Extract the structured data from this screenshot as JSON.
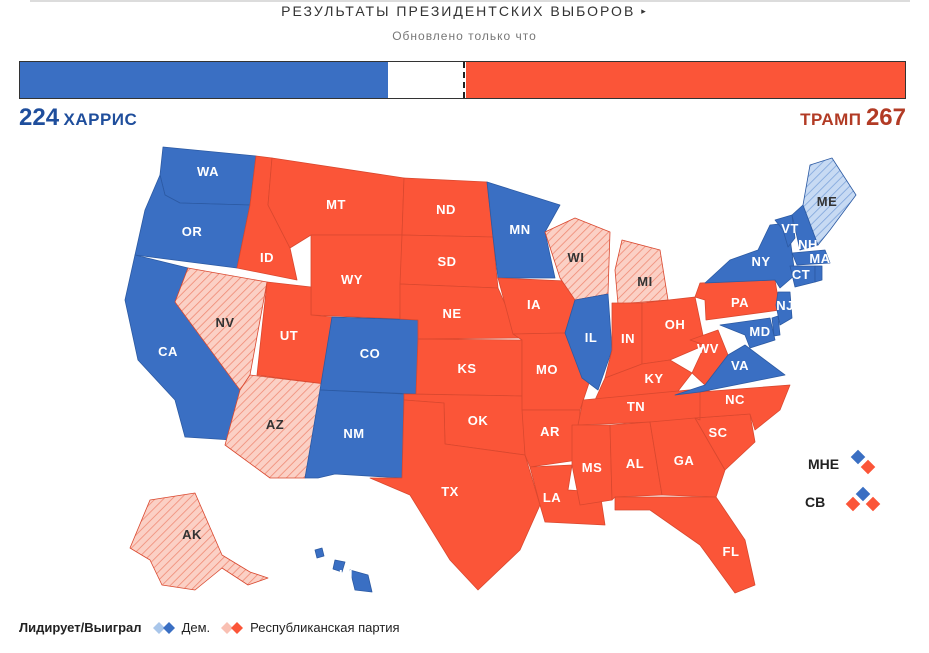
{
  "header": {
    "title": "РЕЗУЛЬТАТЫ ПРЕЗИДЕНТСКИХ ВЫБОРОВ",
    "arrow": "▸",
    "updated": "Обновлено только что"
  },
  "tally": {
    "dem_votes": "224",
    "dem_name": "ХАРРИС",
    "rep_name": "ТРАМП",
    "rep_votes": "267",
    "total": 538,
    "to_win": 270
  },
  "colors": {
    "dem_won": "#3a6fc3",
    "dem_lead": "#a9c6ea",
    "rep_won": "#fb5538",
    "rep_lead": "#f9c0b3"
  },
  "states": {
    "WA": "dem_won",
    "OR": "dem_won",
    "CA": "dem_won",
    "NV": "rep_lead",
    "ID": "rep_won",
    "MT": "rep_won",
    "WY": "rep_won",
    "UT": "rep_won",
    "AZ": "rep_lead",
    "CO": "dem_won",
    "NM": "dem_won",
    "ND": "rep_won",
    "SD": "rep_won",
    "NE": "rep_won",
    "KS": "rep_won",
    "OK": "rep_won",
    "TX": "rep_won",
    "MN": "dem_won",
    "IA": "rep_won",
    "MO": "rep_won",
    "AR": "rep_won",
    "LA": "rep_won",
    "WI": "rep_lead",
    "IL": "dem_won",
    "MI": "rep_lead",
    "IN": "rep_won",
    "OH": "rep_won",
    "KY": "rep_won",
    "TN": "rep_won",
    "MS": "rep_won",
    "AL": "rep_won",
    "GA": "rep_won",
    "FL": "rep_won",
    "SC": "rep_won",
    "NC": "rep_won",
    "WV": "rep_won",
    "VA": "dem_won",
    "PA": "rep_won",
    "NY": "dem_won",
    "VT": "dem_won",
    "NH": "dem_won",
    "ME": "dem_lead",
    "MA": "dem_won",
    "CT": "dem_won",
    "RI": "dem_won",
    "NJ": "dem_won",
    "DE": "dem_won",
    "MD": "dem_won",
    "AK": "rep_lead",
    "HI": "dem_won"
  },
  "split_states": [
    {
      "label": "МНЕ",
      "top": "dem_won",
      "right": "rep_won"
    },
    {
      "label": "СВ",
      "top": "dem_won",
      "left": "rep_won",
      "right": "rep_won"
    }
  ],
  "legend": {
    "lead_label": "Лидирует/Выиграл",
    "dem_label": "Дем.",
    "rep_label": "Республиканская партия"
  }
}
